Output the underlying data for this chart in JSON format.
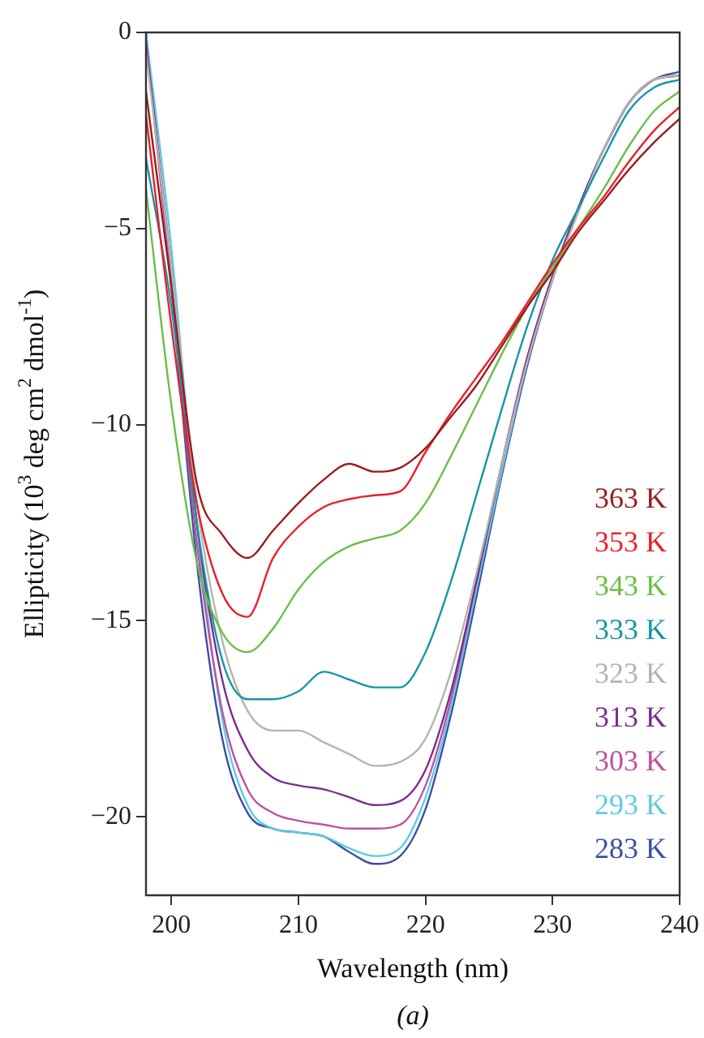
{
  "chart_data": {
    "type": "line",
    "xlabel": "Wavelength (nm)",
    "ylabel": "Ellipticity (10$^{3}$ deg cm$^{2}$ dmol$^{-1}$)",
    "annotations": [
      "(a)"
    ],
    "x": [
      198,
      200,
      202,
      204,
      206,
      208,
      210,
      212,
      214,
      216,
      218,
      220,
      222,
      224,
      226,
      228,
      230,
      232,
      234,
      236,
      238,
      240
    ],
    "xlim": [
      198,
      240
    ],
    "xticks": [
      200,
      210,
      220,
      230,
      240
    ],
    "ylim": [
      -22,
      0
    ],
    "yticks": [
      0,
      -5,
      -10,
      -15,
      -20
    ],
    "grid": false,
    "legend": "right",
    "marker": "none",
    "line_style": "solid",
    "series": [
      {
        "name": "363 K",
        "color": "#9b1b1e",
        "values": [
          -1.5,
          -6.5,
          -11.5,
          -12.8,
          -13.4,
          -12.7,
          -12.0,
          -11.4,
          -11.0,
          -11.2,
          -11.1,
          -10.6,
          -9.8,
          -9.0,
          -8.0,
          -7.0,
          -6.1,
          -5.1,
          -4.3,
          -3.5,
          -2.8,
          -2.2
        ]
      },
      {
        "name": "353 K",
        "color": "#e8202a",
        "values": [
          -2.1,
          -7.5,
          -12.0,
          -14.3,
          -14.9,
          -13.4,
          -12.6,
          -12.1,
          -11.9,
          -11.8,
          -11.7,
          -10.7,
          -9.7,
          -8.8,
          -7.9,
          -6.9,
          -5.9,
          -5.0,
          -4.2,
          -3.3,
          -2.5,
          -1.9
        ]
      },
      {
        "name": "343 K",
        "color": "#6abf45",
        "values": [
          -4.0,
          -9.5,
          -13.5,
          -15.3,
          -15.8,
          -15.2,
          -14.2,
          -13.5,
          -13.1,
          -12.9,
          -12.7,
          -12.0,
          -10.8,
          -9.5,
          -8.2,
          -7.0,
          -6.0,
          -5.0,
          -4.0,
          -2.9,
          -2.0,
          -1.5
        ]
      },
      {
        "name": "333 K",
        "color": "#1596a8",
        "values": [
          -3.2,
          -7.0,
          -12.5,
          -16.0,
          -17.0,
          -17.0,
          -16.8,
          -16.3,
          -16.5,
          -16.7,
          -16.7,
          -15.8,
          -14.0,
          -11.8,
          -9.6,
          -7.5,
          -5.8,
          -4.5,
          -3.2,
          -2.0,
          -1.4,
          -1.2
        ]
      },
      {
        "name": "323 K",
        "color": "#b5b5ab",
        "values": [
          -0.5,
          -6.0,
          -12.0,
          -15.5,
          -17.3,
          -17.8,
          -17.8,
          -18.1,
          -18.4,
          -18.7,
          -18.6,
          -18.0,
          -16.3,
          -13.8,
          -11.0,
          -8.4,
          -6.3,
          -4.6,
          -3.0,
          -1.8,
          -1.2,
          -1.1
        ]
      },
      {
        "name": "313 K",
        "color": "#7c2c8f",
        "values": [
          -0.3,
          -6.0,
          -12.5,
          -16.5,
          -18.3,
          -19.0,
          -19.2,
          -19.3,
          -19.5,
          -19.7,
          -19.6,
          -18.8,
          -16.8,
          -14.0,
          -11.0,
          -8.3,
          -6.2,
          -4.5,
          -3.0,
          -1.8,
          -1.2,
          -1.1
        ]
      },
      {
        "name": "303 K",
        "color": "#c050a0",
        "values": [
          -0.2,
          -6.5,
          -13.0,
          -17.3,
          -19.3,
          -19.9,
          -20.1,
          -20.2,
          -20.3,
          -20.3,
          -20.2,
          -19.2,
          -17.0,
          -14.0,
          -11.0,
          -8.3,
          -6.2,
          -4.5,
          -3.0,
          -1.8,
          -1.2,
          -1.1
        ]
      },
      {
        "name": "293 K",
        "color": "#5fcbe0",
        "values": [
          0,
          -5.5,
          -12.5,
          -17.5,
          -19.7,
          -20.3,
          -20.4,
          -20.5,
          -20.8,
          -21.0,
          -20.8,
          -19.5,
          -17.2,
          -14.2,
          -11.2,
          -8.4,
          -6.2,
          -4.5,
          -3.0,
          -1.8,
          -1.2,
          -1.1
        ]
      },
      {
        "name": "283 K",
        "color": "#3a4fa5",
        "values": [
          0,
          -6.5,
          -13.5,
          -18.0,
          -19.9,
          -20.3,
          -20.4,
          -20.5,
          -20.9,
          -21.2,
          -21.0,
          -19.8,
          -17.4,
          -14.4,
          -11.3,
          -8.5,
          -6.3,
          -4.5,
          -3.0,
          -1.8,
          -1.2,
          -1.0
        ]
      }
    ]
  }
}
